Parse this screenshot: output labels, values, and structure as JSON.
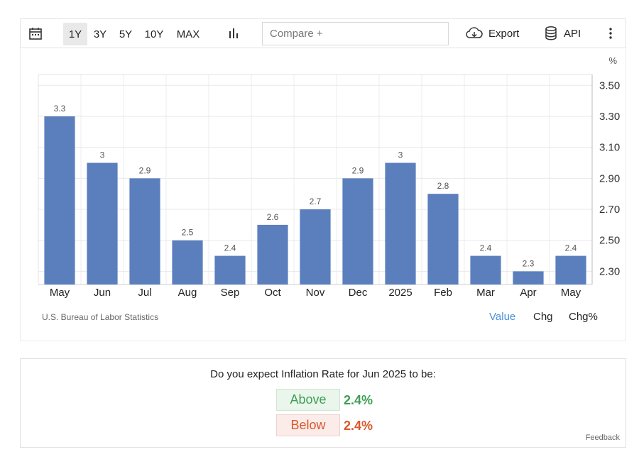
{
  "toolbar": {
    "ranges": [
      "1Y",
      "3Y",
      "5Y",
      "10Y",
      "MAX"
    ],
    "active_range": "1Y",
    "compare_placeholder": "Compare +",
    "export_label": "Export",
    "api_label": "API"
  },
  "chart_data": {
    "type": "bar",
    "unit_label": "%",
    "categories": [
      "May",
      "Jun",
      "Jul",
      "Aug",
      "Sep",
      "Oct",
      "Nov",
      "Dec",
      "2025",
      "Feb",
      "Mar",
      "Apr",
      "May"
    ],
    "values": [
      3.3,
      3,
      2.9,
      2.5,
      2.4,
      2.6,
      2.7,
      2.9,
      3,
      2.8,
      2.4,
      2.3,
      2.4
    ],
    "value_labels": [
      "3.3",
      "3",
      "2.9",
      "2.5",
      "2.4",
      "2.6",
      "2.7",
      "2.9",
      "3",
      "2.8",
      "2.4",
      "2.3",
      "2.4"
    ],
    "y_ticks": [
      3.5,
      3.3,
      3.1,
      2.9,
      2.7,
      2.5,
      2.3
    ],
    "y_tick_labels": [
      "3.50",
      "3.30",
      "3.10",
      "2.90",
      "2.70",
      "2.50",
      "2.30"
    ],
    "ylim": [
      2.215,
      3.57
    ],
    "y_axis_side": "right",
    "grid": true,
    "bar_color": "#5b7fbd"
  },
  "source": "U.S. Bureau of Labor Statistics",
  "view_tabs": {
    "value": "Value",
    "chg": "Chg",
    "chg_pct": "Chg%"
  },
  "poll": {
    "question": "Do you expect Inflation Rate for Jun 2025 to be:",
    "above_label": "Above",
    "above_value": "2.4%",
    "below_label": "Below",
    "below_value": "2.4%",
    "feedback": "Feedback"
  }
}
